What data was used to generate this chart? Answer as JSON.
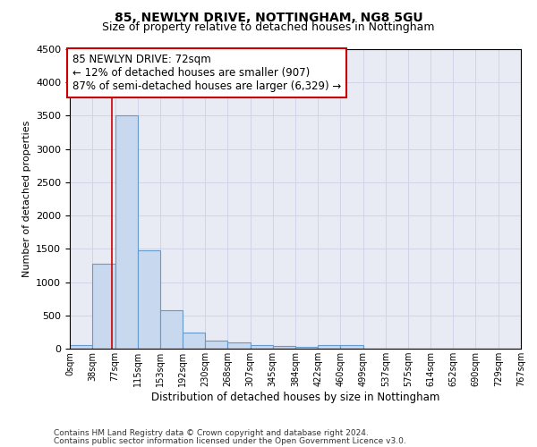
{
  "title1": "85, NEWLYN DRIVE, NOTTINGHAM, NG8 5GU",
  "title2": "Size of property relative to detached houses in Nottingham",
  "xlabel": "Distribution of detached houses by size in Nottingham",
  "ylabel": "Number of detached properties",
  "bin_edges": [
    0,
    38,
    77,
    115,
    153,
    192,
    230,
    268,
    307,
    345,
    384,
    422,
    460,
    499,
    537,
    575,
    614,
    652,
    690,
    729,
    767
  ],
  "bin_labels": [
    "0sqm",
    "38sqm",
    "77sqm",
    "115sqm",
    "153sqm",
    "192sqm",
    "230sqm",
    "268sqm",
    "307sqm",
    "345sqm",
    "384sqm",
    "422sqm",
    "460sqm",
    "499sqm",
    "537sqm",
    "575sqm",
    "614sqm",
    "652sqm",
    "690sqm",
    "729sqm",
    "767sqm"
  ],
  "bar_heights": [
    50,
    1280,
    3500,
    1480,
    580,
    240,
    115,
    90,
    55,
    40,
    30,
    50,
    50,
    0,
    0,
    0,
    0,
    0,
    0,
    0
  ],
  "bar_color": "#c8d8ee",
  "bar_edge_color": "#6699cc",
  "grid_color": "#d0d4e8",
  "bg_color": "#e8eaf4",
  "property_size": 72,
  "vline_color": "#cc0000",
  "annotation_line1": "85 NEWLYN DRIVE: 72sqm",
  "annotation_line2": "← 12% of detached houses are smaller (907)",
  "annotation_line3": "87% of semi-detached houses are larger (6,329) →",
  "annotation_box_color": "#cc0000",
  "ylim": [
    0,
    4500
  ],
  "yticks": [
    0,
    500,
    1000,
    1500,
    2000,
    2500,
    3000,
    3500,
    4000,
    4500
  ],
  "footnote1": "Contains HM Land Registry data © Crown copyright and database right 2024.",
  "footnote2": "Contains public sector information licensed under the Open Government Licence v3.0."
}
